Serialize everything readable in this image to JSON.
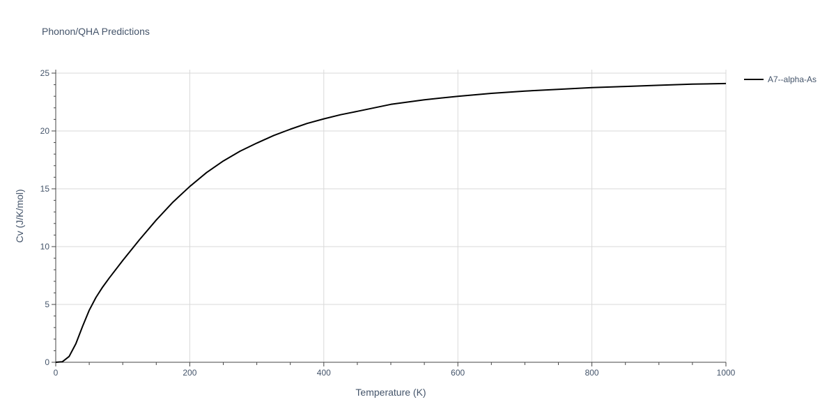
{
  "chart_data": {
    "type": "line",
    "title": "Phonon/QHA Predictions",
    "xlabel": "Temperature (K)",
    "ylabel": "Cv (J/K/mol)",
    "xlim": [
      0,
      1000
    ],
    "ylim": [
      0,
      25.3
    ],
    "x_ticks": [
      0,
      200,
      400,
      600,
      800,
      1000
    ],
    "y_ticks": [
      0,
      5,
      10,
      15,
      20,
      25
    ],
    "grid": true,
    "legend_position": "top-right",
    "series": [
      {
        "name": "A7--alpha-As",
        "color": "#000000",
        "x": [
          0,
          10,
          20,
          30,
          40,
          50,
          60,
          70,
          80,
          100,
          125,
          150,
          175,
          200,
          225,
          250,
          275,
          300,
          325,
          350,
          375,
          400,
          425,
          450,
          500,
          550,
          600,
          650,
          700,
          750,
          800,
          850,
          900,
          950,
          1000
        ],
        "y": [
          0,
          0.05,
          0.5,
          1.6,
          3.1,
          4.5,
          5.6,
          6.5,
          7.3,
          8.8,
          10.6,
          12.3,
          13.85,
          15.2,
          16.4,
          17.4,
          18.25,
          18.95,
          19.6,
          20.15,
          20.65,
          21.05,
          21.4,
          21.7,
          22.3,
          22.7,
          23.0,
          23.25,
          23.45,
          23.6,
          23.75,
          23.85,
          23.95,
          24.05,
          24.1
        ]
      }
    ]
  }
}
